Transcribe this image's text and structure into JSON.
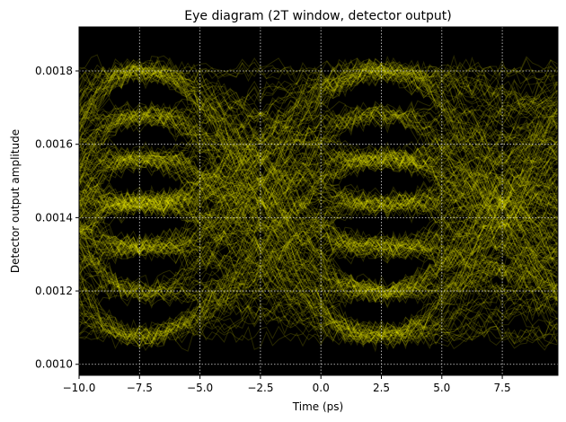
{
  "chart_data": {
    "type": "line",
    "title": "Eye diagram (2T window, detector output)",
    "xlabel": "Time (ps)",
    "ylabel": "Detector output amplitude",
    "xlim": [
      -10.0,
      9.8
    ],
    "ylim": [
      0.00097,
      0.00192
    ],
    "x_ticks": [
      -10.0,
      -7.5,
      -5.0,
      -2.5,
      0.0,
      2.5,
      5.0,
      7.5
    ],
    "x_tick_labels": [
      "−10.0",
      "−7.5",
      "−5.0",
      "−2.5",
      "0.0",
      "2.5",
      "5.0",
      "7.5"
    ],
    "y_ticks": [
      0.001,
      0.0012,
      0.0014,
      0.0016,
      0.0018
    ],
    "y_tick_labels": [
      "0.0010",
      "0.0012",
      "0.0014",
      "0.0016",
      "0.0018"
    ],
    "grid": true,
    "background_color": "#000000",
    "trace_color": "#ffff00",
    "grid_color": "#d8d8d8",
    "unit_interval_ps": 10,
    "crossing_times_ps": [
      -2.5,
      7.5
    ],
    "amplitude_levels": [
      0.00108,
      0.0012,
      0.00132,
      0.00144,
      0.00156,
      0.00168,
      0.0018
    ]
  }
}
